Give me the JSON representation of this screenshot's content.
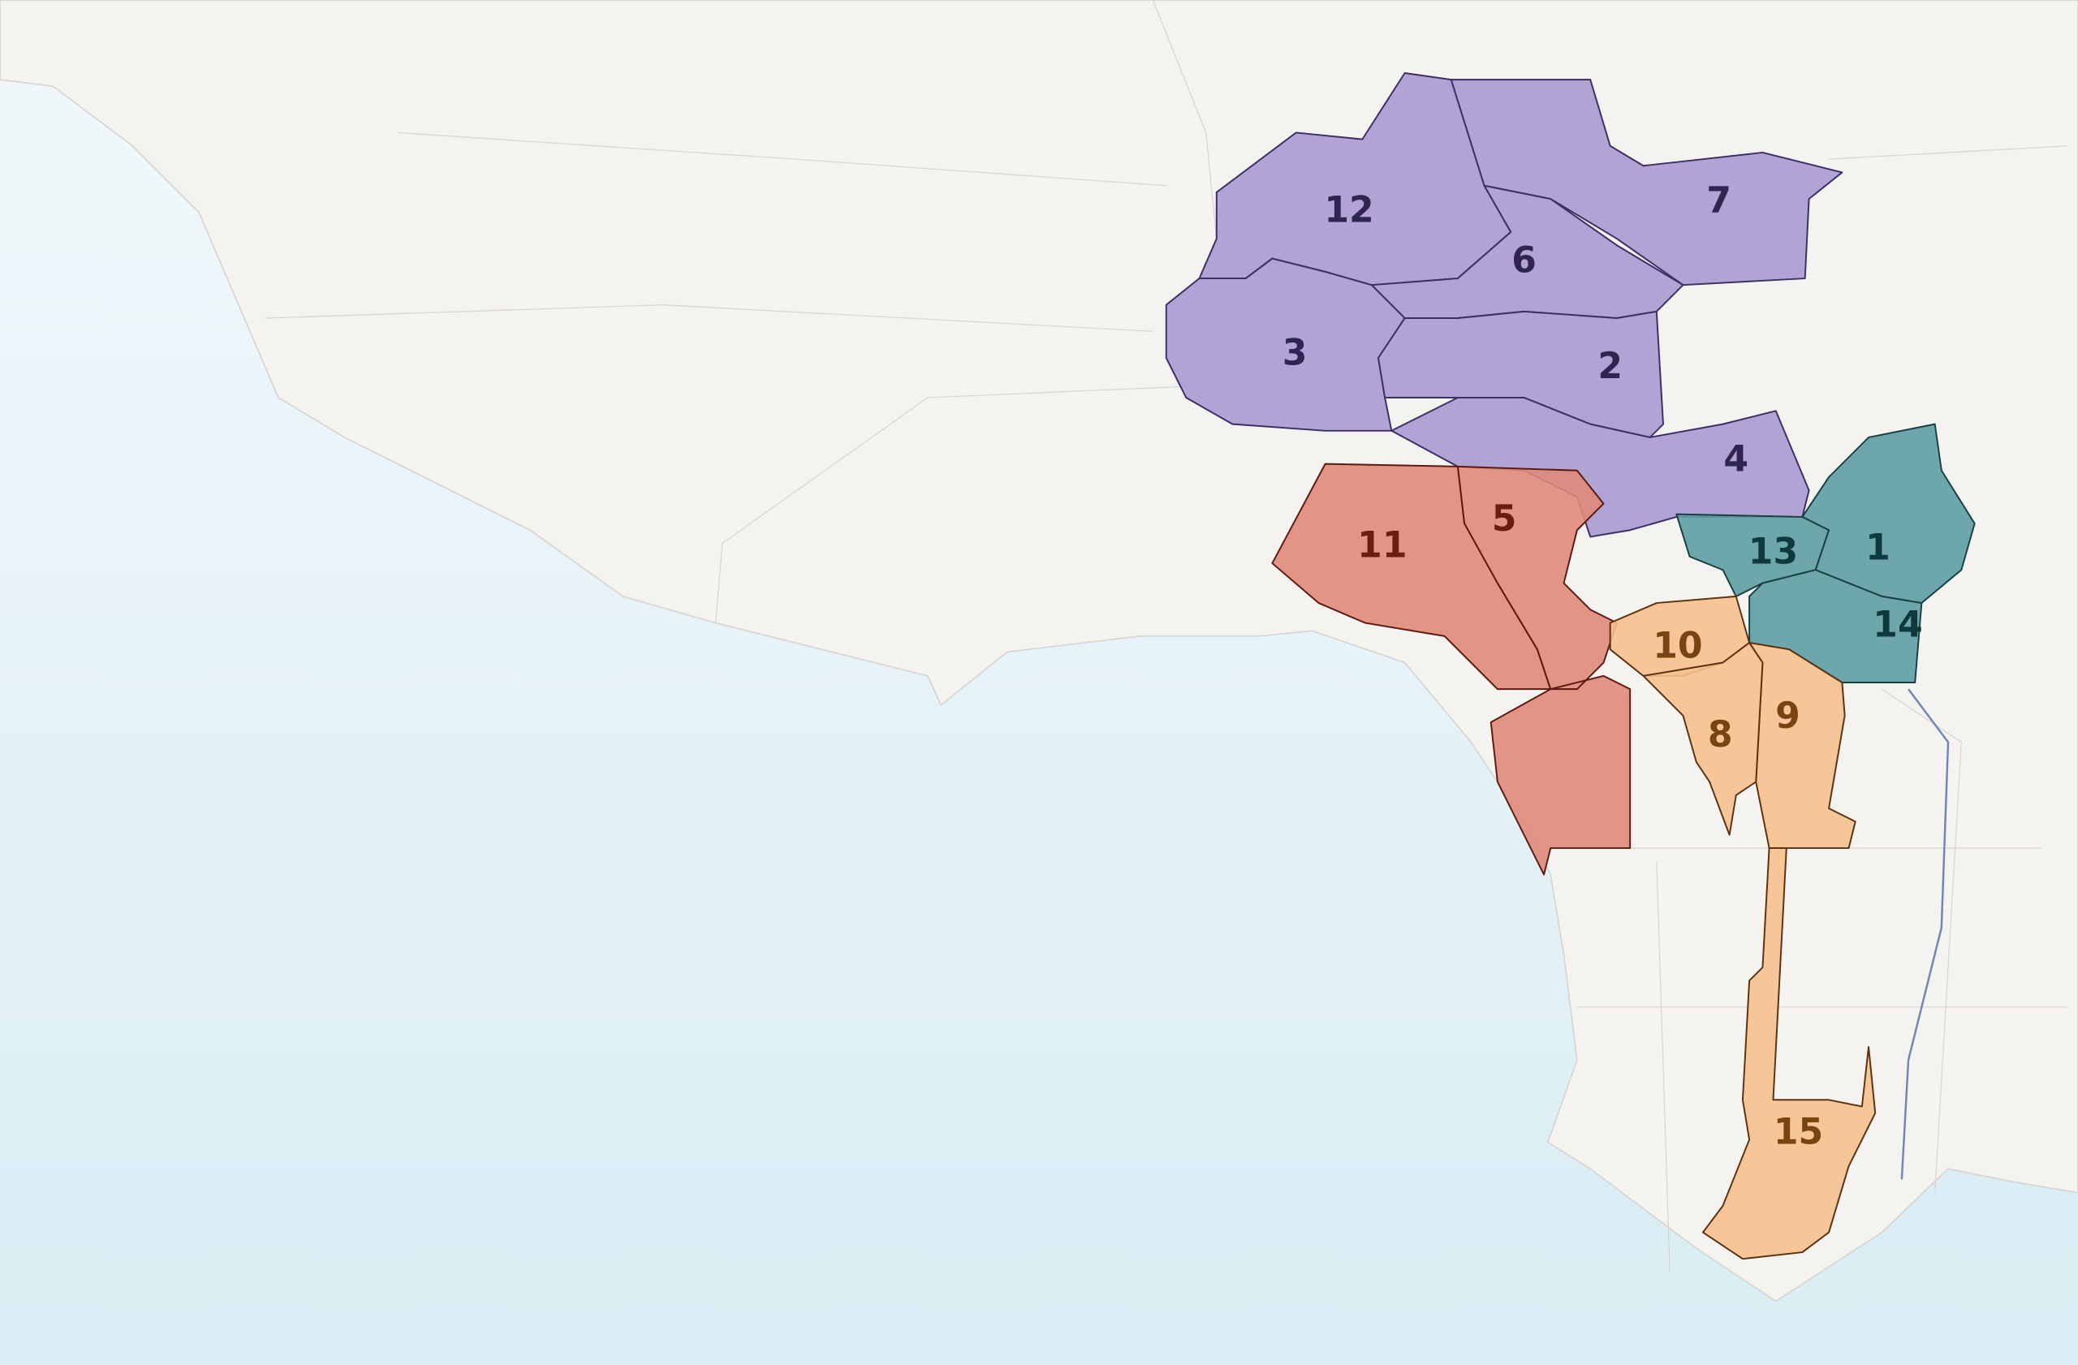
{
  "districts": [
    {
      "label": "12"
    },
    {
      "label": "7"
    },
    {
      "label": "6"
    },
    {
      "label": "3"
    },
    {
      "label": "2"
    },
    {
      "label": "4"
    },
    {
      "label": "11"
    },
    {
      "label": "5"
    },
    {
      "label": "13"
    },
    {
      "label": "1"
    },
    {
      "label": "14"
    },
    {
      "label": "10"
    },
    {
      "label": "9"
    },
    {
      "label": "8"
    },
    {
      "label": "15"
    }
  ]
}
